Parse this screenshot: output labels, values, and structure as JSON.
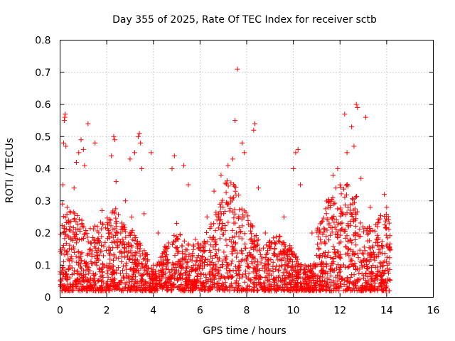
{
  "chart_data": {
    "type": "scatter",
    "title": "Day 355 of 2025, Rate Of TEC Index for receiver sctb",
    "xlabel": "GPS time / hours",
    "ylabel": "ROTI / TECUs",
    "xlim": [
      0,
      16
    ],
    "ylim": [
      0,
      0.8
    ],
    "xticks": [
      0,
      2,
      4,
      6,
      8,
      10,
      12,
      14,
      16
    ],
    "yticks": [
      0,
      0.1,
      0.2,
      0.3,
      0.4,
      0.5,
      0.6,
      0.7,
      0.8
    ],
    "xtick_labels": [
      "0",
      "2",
      "4",
      "6",
      "8",
      "10",
      "12",
      "14",
      "16"
    ],
    "ytick_labels": [
      "0",
      "0.1",
      "0.2",
      "0.3",
      "0.4",
      "0.5",
      "0.6",
      "0.7",
      "0.8"
    ],
    "grid": true,
    "marker": "+",
    "color": "#ff0000",
    "series": [
      {
        "name": "ROTI",
        "x_range": [
          0,
          14.15
        ],
        "points": [
          [
            0.05,
            0.05
          ],
          [
            0.1,
            0.29
          ],
          [
            0.12,
            0.35
          ],
          [
            0.15,
            0.48
          ],
          [
            0.18,
            0.55
          ],
          [
            0.2,
            0.56
          ],
          [
            0.22,
            0.57
          ],
          [
            0.25,
            0.47
          ],
          [
            0.3,
            0.28
          ],
          [
            0.4,
            0.21
          ],
          [
            0.5,
            0.12
          ],
          [
            0.6,
            0.34
          ],
          [
            0.7,
            0.42
          ],
          [
            0.8,
            0.45
          ],
          [
            0.9,
            0.49
          ],
          [
            1.0,
            0.46
          ],
          [
            1.05,
            0.41
          ],
          [
            1.2,
            0.54
          ],
          [
            1.3,
            0.15
          ],
          [
            1.5,
            0.48
          ],
          [
            1.6,
            0.22
          ],
          [
            1.8,
            0.27
          ],
          [
            2.0,
            0.1
          ],
          [
            2.2,
            0.44
          ],
          [
            2.3,
            0.5
          ],
          [
            2.35,
            0.49
          ],
          [
            2.4,
            0.36
          ],
          [
            2.6,
            0.2
          ],
          [
            2.8,
            0.3
          ],
          [
            3.0,
            0.43
          ],
          [
            3.2,
            0.45
          ],
          [
            3.35,
            0.5
          ],
          [
            3.4,
            0.51
          ],
          [
            3.45,
            0.48
          ],
          [
            3.5,
            0.4
          ],
          [
            3.6,
            0.26
          ],
          [
            3.9,
            0.45
          ],
          [
            4.0,
            0.1
          ],
          [
            4.2,
            0.2
          ],
          [
            4.5,
            0.15
          ],
          [
            4.8,
            0.4
          ],
          [
            4.9,
            0.44
          ],
          [
            5.0,
            0.23
          ],
          [
            5.3,
            0.41
          ],
          [
            5.5,
            0.35
          ],
          [
            5.8,
            0.18
          ],
          [
            6.0,
            0.1
          ],
          [
            6.3,
            0.25
          ],
          [
            6.6,
            0.33
          ],
          [
            6.9,
            0.38
          ],
          [
            7.2,
            0.41
          ],
          [
            7.3,
            0.31
          ],
          [
            7.4,
            0.43
          ],
          [
            7.5,
            0.55
          ],
          [
            7.6,
            0.71
          ],
          [
            7.8,
            0.48
          ],
          [
            7.9,
            0.45
          ],
          [
            8.0,
            0.12
          ],
          [
            8.3,
            0.52
          ],
          [
            8.35,
            0.54
          ],
          [
            8.5,
            0.34
          ],
          [
            8.8,
            0.2
          ],
          [
            9.2,
            0.15
          ],
          [
            9.6,
            0.25
          ],
          [
            10.0,
            0.4
          ],
          [
            10.1,
            0.45
          ],
          [
            10.2,
            0.46
          ],
          [
            10.3,
            0.35
          ],
          [
            10.5,
            0.1
          ],
          [
            10.8,
            0.2
          ],
          [
            11.1,
            0.15
          ],
          [
            11.5,
            0.3
          ],
          [
            11.7,
            0.38
          ],
          [
            11.9,
            0.4
          ],
          [
            12.0,
            0.35
          ],
          [
            12.2,
            0.57
          ],
          [
            12.3,
            0.45
          ],
          [
            12.5,
            0.53
          ],
          [
            12.6,
            0.47
          ],
          [
            12.7,
            0.6
          ],
          [
            12.75,
            0.59
          ],
          [
            12.9,
            0.37
          ],
          [
            13.1,
            0.56
          ],
          [
            13.3,
            0.28
          ],
          [
            13.6,
            0.22
          ],
          [
            13.9,
            0.32
          ],
          [
            14.0,
            0.28
          ],
          [
            14.1,
            0.02
          ]
        ],
        "dense_band": "most points lie between 0.02 and 0.30 across 0-14.15 h"
      }
    ]
  }
}
